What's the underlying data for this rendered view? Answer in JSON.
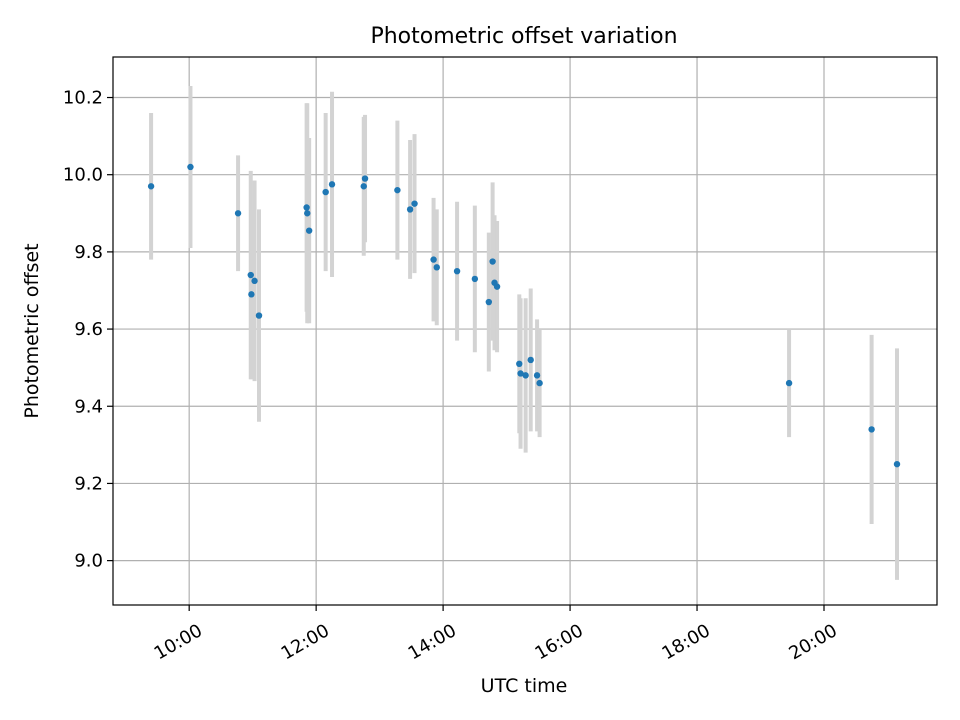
{
  "chart_data": {
    "type": "scatter",
    "title": "Photometric offset variation",
    "xlabel": "UTC time",
    "ylabel": "Photometric offset",
    "grid": true,
    "x_unit": "hours UTC",
    "xlim": [
      8.8,
      21.78
    ],
    "ylim": [
      8.885,
      10.305
    ],
    "x_ticks": [
      {
        "value": 10,
        "label": "10:00"
      },
      {
        "value": 12,
        "label": "12:00"
      },
      {
        "value": 14,
        "label": "14:00"
      },
      {
        "value": 16,
        "label": "16:00"
      },
      {
        "value": 18,
        "label": "18:00"
      },
      {
        "value": 20,
        "label": "20:00"
      }
    ],
    "y_ticks": [
      {
        "value": 9.0,
        "label": "9.0"
      },
      {
        "value": 9.2,
        "label": "9.2"
      },
      {
        "value": 9.4,
        "label": "9.4"
      },
      {
        "value": 9.6,
        "label": "9.6"
      },
      {
        "value": 9.8,
        "label": "9.8"
      },
      {
        "value": 10.0,
        "label": "10.0"
      },
      {
        "value": 10.2,
        "label": "10.2"
      }
    ],
    "marker_color": "#1f77b4",
    "errorbar_color": "#d3d3d3",
    "points": [
      {
        "x": 9.4,
        "y": 9.97,
        "err": 0.19
      },
      {
        "x": 10.02,
        "y": 10.02,
        "err": 0.21
      },
      {
        "x": 10.77,
        "y": 9.9,
        "err": 0.15
      },
      {
        "x": 10.97,
        "y": 9.74,
        "err": 0.27
      },
      {
        "x": 10.98,
        "y": 9.69,
        "err": 0.22
      },
      {
        "x": 11.03,
        "y": 9.725,
        "err": 0.26
      },
      {
        "x": 11.1,
        "y": 9.635,
        "err": 0.275
      },
      {
        "x": 11.85,
        "y": 9.915,
        "err": 0.27
      },
      {
        "x": 11.86,
        "y": 9.9,
        "err": 0.285
      },
      {
        "x": 11.89,
        "y": 9.855,
        "err": 0.24
      },
      {
        "x": 12.15,
        "y": 9.955,
        "err": 0.205
      },
      {
        "x": 12.25,
        "y": 9.975,
        "err": 0.24
      },
      {
        "x": 12.75,
        "y": 9.97,
        "err": 0.18
      },
      {
        "x": 12.77,
        "y": 9.99,
        "err": 0.165
      },
      {
        "x": 13.28,
        "y": 9.96,
        "err": 0.18
      },
      {
        "x": 13.48,
        "y": 9.91,
        "err": 0.18
      },
      {
        "x": 13.55,
        "y": 9.925,
        "err": 0.18
      },
      {
        "x": 13.85,
        "y": 9.78,
        "err": 0.16
      },
      {
        "x": 13.9,
        "y": 9.76,
        "err": 0.15
      },
      {
        "x": 14.22,
        "y": 9.75,
        "err": 0.18
      },
      {
        "x": 14.5,
        "y": 9.73,
        "err": 0.19
      },
      {
        "x": 14.72,
        "y": 9.67,
        "err": 0.18
      },
      {
        "x": 14.78,
        "y": 9.775,
        "err": 0.205
      },
      {
        "x": 14.81,
        "y": 9.72,
        "err": 0.175
      },
      {
        "x": 14.85,
        "y": 9.71,
        "err": 0.17
      },
      {
        "x": 15.2,
        "y": 9.51,
        "err": 0.18
      },
      {
        "x": 15.22,
        "y": 9.485,
        "err": 0.195
      },
      {
        "x": 15.3,
        "y": 9.48,
        "err": 0.2
      },
      {
        "x": 15.38,
        "y": 9.52,
        "err": 0.185
      },
      {
        "x": 15.48,
        "y": 9.48,
        "err": 0.145
      },
      {
        "x": 15.52,
        "y": 9.46,
        "err": 0.14
      },
      {
        "x": 19.45,
        "y": 9.46,
        "err": 0.14
      },
      {
        "x": 20.75,
        "y": 9.34,
        "err": 0.245
      },
      {
        "x": 21.15,
        "y": 9.25,
        "err": 0.3
      }
    ]
  }
}
